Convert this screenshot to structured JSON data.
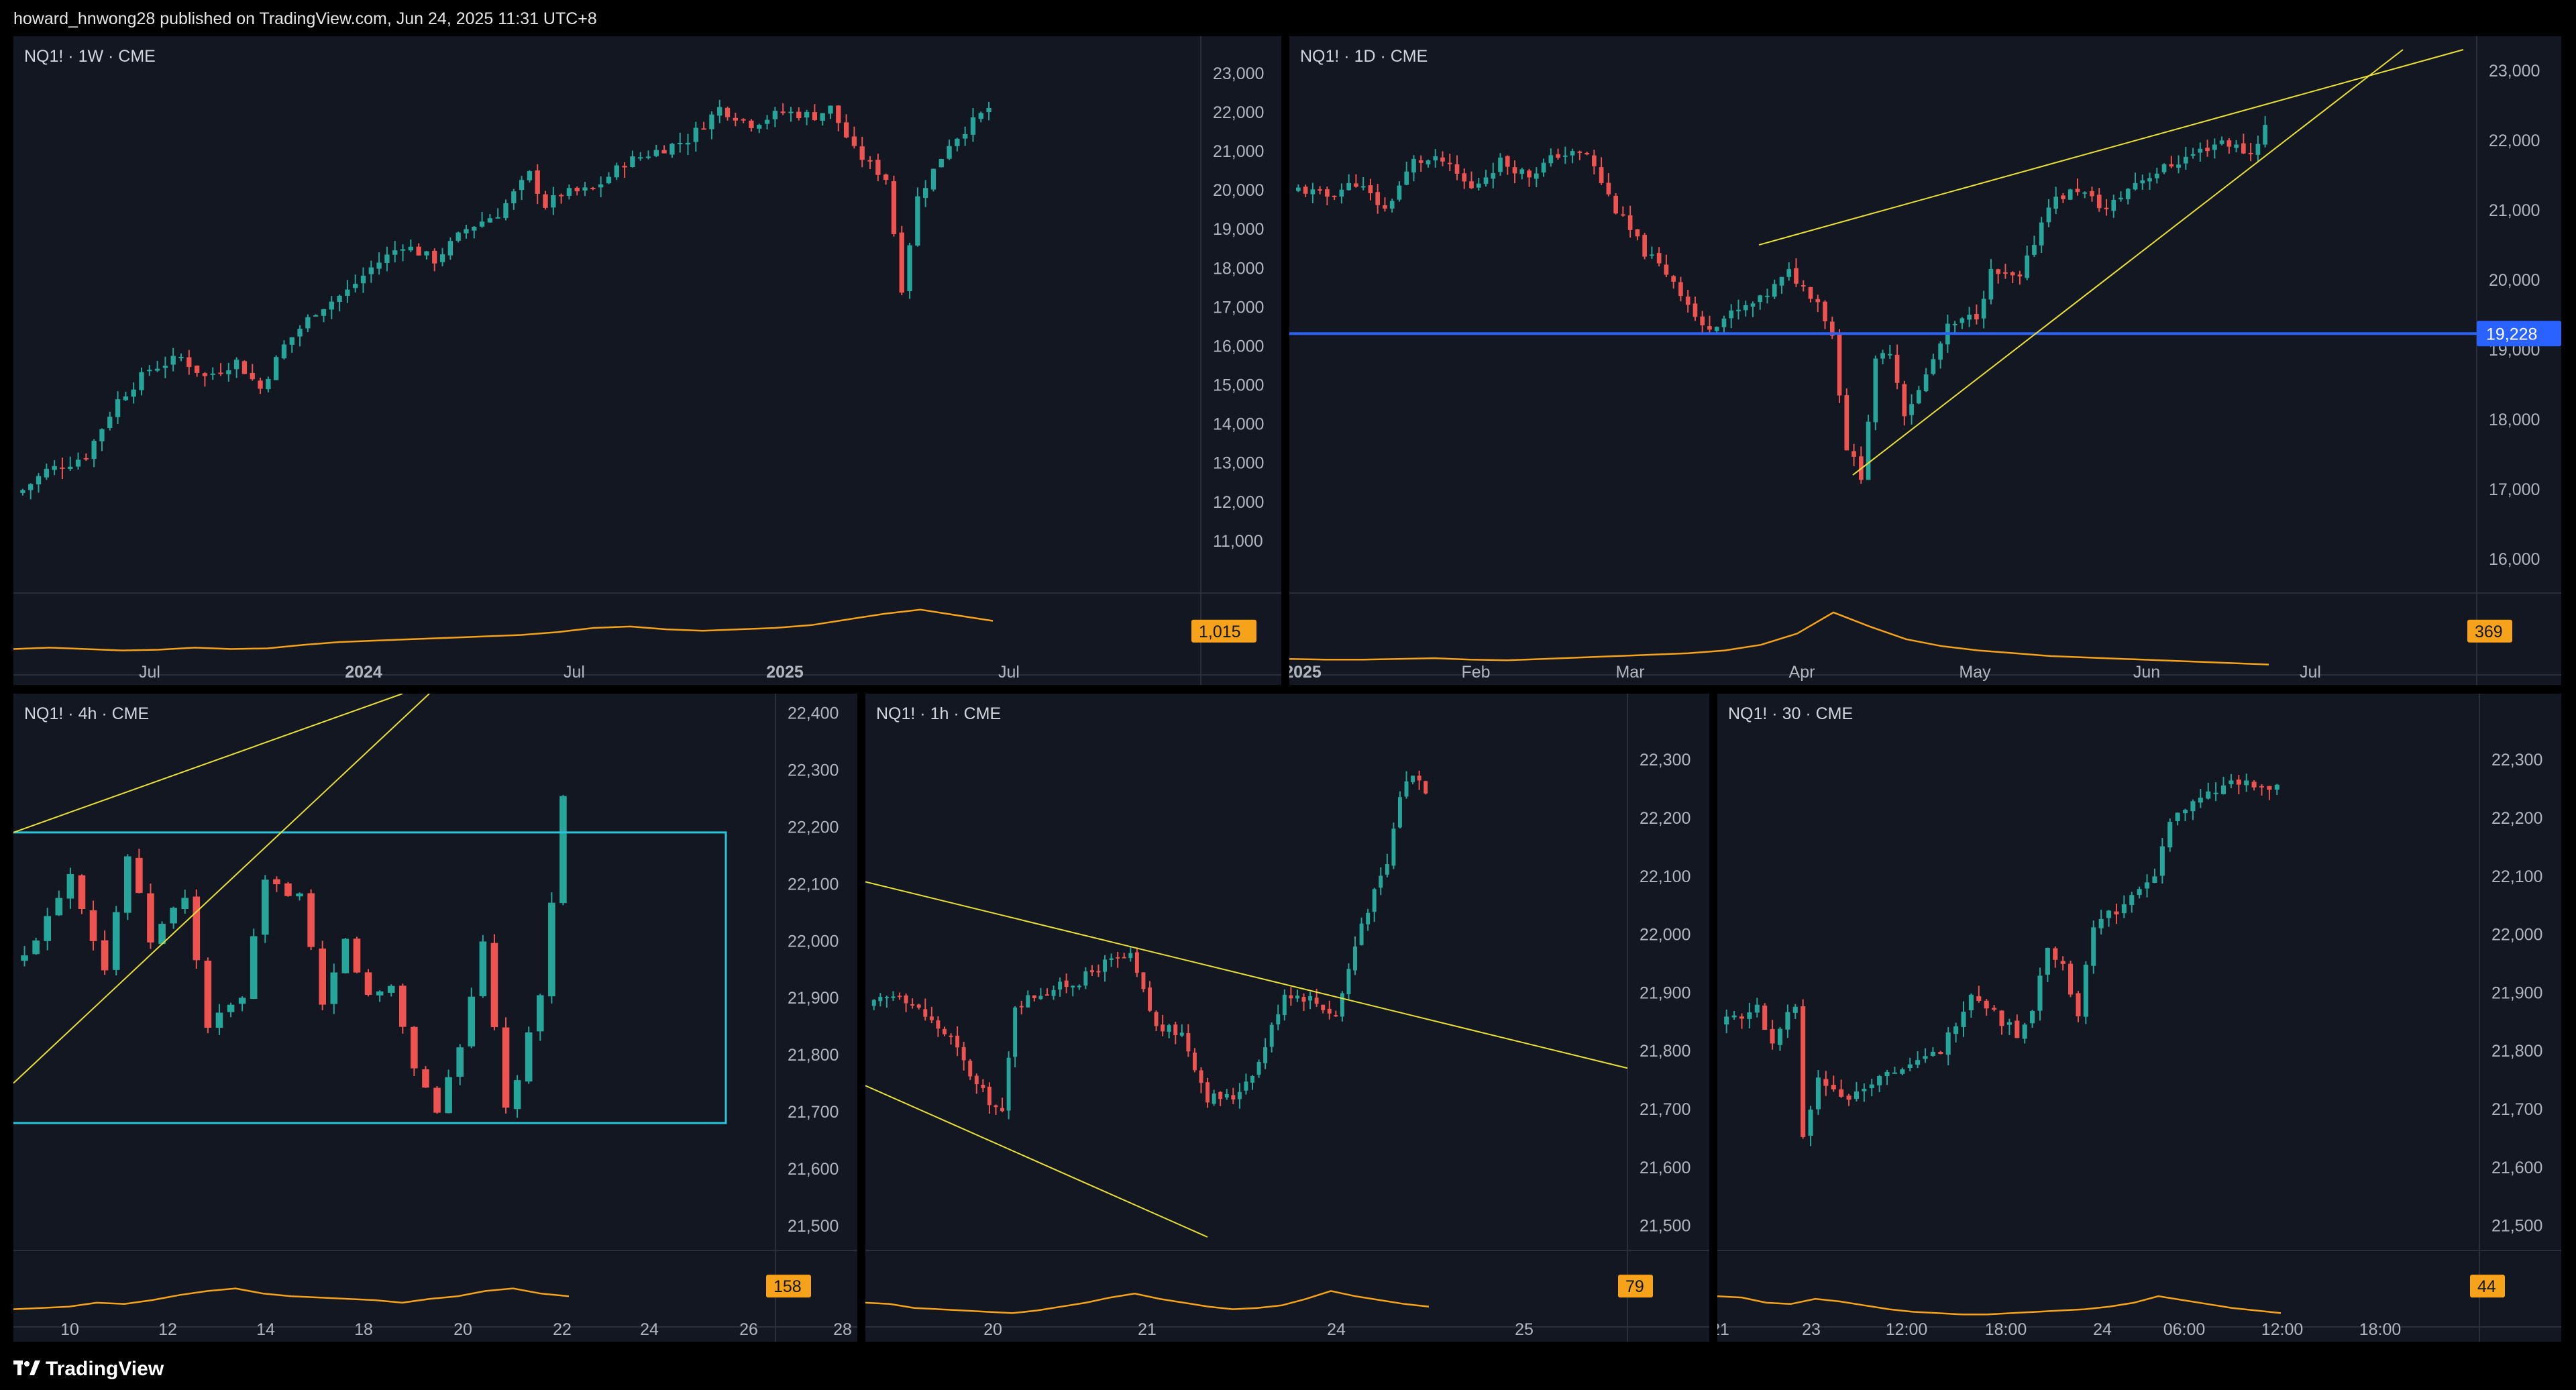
{
  "header": {
    "text": "howard_hnwong28 published on TradingView.com, Jun 24, 2025 11:31 UTC+8"
  },
  "footer": {
    "brand": "TradingView"
  },
  "colors": {
    "up": "#26a69a",
    "down": "#ef5350",
    "volume": "#f7a21b",
    "trend": "#e8e036",
    "level": "#2962ff",
    "box": "#26c6da",
    "bg": "#131722"
  },
  "chart_data": [
    {
      "type": "candlestick",
      "title": "NQ1! · 1W · CME",
      "ylim": [
        10000,
        23600
      ],
      "y_ticks": [
        11000,
        12000,
        13000,
        14000,
        15000,
        16000,
        17000,
        18000,
        19000,
        20000,
        21000,
        22000,
        23000
      ],
      "x_ticks": [
        "Jul",
        "2024",
        "Jul",
        "2025",
        "Jul"
      ],
      "keypoints": [
        [
          0,
          12300
        ],
        [
          3,
          12800
        ],
        [
          6,
          13000
        ],
        [
          8,
          13200
        ],
        [
          12,
          14600
        ],
        [
          16,
          15400
        ],
        [
          20,
          15700
        ],
        [
          23,
          15200
        ],
        [
          27,
          15600
        ],
        [
          30,
          14900
        ],
        [
          33,
          16000
        ],
        [
          37,
          16900
        ],
        [
          41,
          17400
        ],
        [
          44,
          18000
        ],
        [
          48,
          18600
        ],
        [
          52,
          18200
        ],
        [
          56,
          19000
        ],
        [
          60,
          19400
        ],
        [
          64,
          20400
        ],
        [
          66,
          19600
        ],
        [
          68,
          19900
        ],
        [
          72,
          20000
        ],
        [
          76,
          20700
        ],
        [
          80,
          21000
        ],
        [
          84,
          21300
        ],
        [
          88,
          22100
        ],
        [
          92,
          21700
        ],
        [
          96,
          22000
        ],
        [
          100,
          21900
        ],
        [
          102,
          22100
        ],
        [
          105,
          21000
        ],
        [
          109,
          20300
        ],
        [
          111,
          17500
        ],
        [
          113,
          19800
        ],
        [
          117,
          21200
        ],
        [
          122,
          22100
        ]
      ],
      "volume_label": "1,015",
      "volume_curve": [
        30,
        32,
        30,
        28,
        29,
        32,
        30,
        31,
        36,
        40,
        42,
        44,
        46,
        48,
        50,
        54,
        60,
        62,
        58,
        56,
        58,
        60,
        64,
        72,
        80,
        86,
        78,
        70
      ]
    },
    {
      "type": "candlestick",
      "title": "NQ1! · 1D · CME",
      "ylim": [
        15700,
        23300
      ],
      "y_ticks": [
        16000,
        17000,
        18000,
        19000,
        20000,
        21000,
        22000,
        23000
      ],
      "x_ticks": [
        "2025",
        "Feb",
        "Mar",
        "Apr",
        "May",
        "Jun",
        "Jul"
      ],
      "level": 19228,
      "level_label": "19,228",
      "keypoints": [
        [
          0,
          21300
        ],
        [
          4,
          21200
        ],
        [
          8,
          21400
        ],
        [
          12,
          21000
        ],
        [
          16,
          21700
        ],
        [
          20,
          21700
        ],
        [
          24,
          21300
        ],
        [
          28,
          21700
        ],
        [
          32,
          21500
        ],
        [
          36,
          21800
        ],
        [
          40,
          21800
        ],
        [
          44,
          21000
        ],
        [
          48,
          20400
        ],
        [
          52,
          20000
        ],
        [
          56,
          19300
        ],
        [
          60,
          19500
        ],
        [
          64,
          19700
        ],
        [
          68,
          20100
        ],
        [
          72,
          19700
        ],
        [
          74,
          19200
        ],
        [
          76,
          17600
        ],
        [
          78,
          17200
        ],
        [
          80,
          18800
        ],
        [
          82,
          19000
        ],
        [
          84,
          18100
        ],
        [
          86,
          18400
        ],
        [
          90,
          19300
        ],
        [
          94,
          19500
        ],
        [
          96,
          20100
        ],
        [
          100,
          20000
        ],
        [
          104,
          21100
        ],
        [
          108,
          21300
        ],
        [
          112,
          21000
        ],
        [
          116,
          21400
        ],
        [
          120,
          21600
        ],
        [
          124,
          21800
        ],
        [
          128,
          22000
        ],
        [
          132,
          21800
        ],
        [
          134,
          22200
        ]
      ],
      "volume_label": "369",
      "volume_curve": [
        16,
        15,
        15,
        16,
        17,
        15,
        14,
        16,
        18,
        20,
        22,
        24,
        28,
        36,
        52,
        82,
        62,
        44,
        34,
        28,
        24,
        20,
        18,
        16,
        14,
        12,
        10,
        8
      ]
    },
    {
      "type": "candlestick",
      "title": "NQ1! · 4h · CME",
      "ylim": [
        21480,
        22410
      ],
      "y_ticks": [
        21500,
        21600,
        21700,
        21800,
        21900,
        22000,
        22100,
        22200,
        22300,
        22400
      ],
      "x_ticks": [
        "10",
        "12",
        "14",
        "18",
        "20",
        "22",
        "24",
        "26",
        "28"
      ],
      "keypoints": [
        [
          0,
          21970
        ],
        [
          4,
          22120
        ],
        [
          7,
          21950
        ],
        [
          9,
          22150
        ],
        [
          11,
          22000
        ],
        [
          14,
          22080
        ],
        [
          16,
          21850
        ],
        [
          19,
          21900
        ],
        [
          21,
          22100
        ],
        [
          24,
          22080
        ],
        [
          26,
          21880
        ],
        [
          28,
          22000
        ],
        [
          30,
          21900
        ],
        [
          32,
          21920
        ],
        [
          34,
          21780
        ],
        [
          36,
          21700
        ],
        [
          38,
          21820
        ],
        [
          40,
          21990
        ],
        [
          42,
          21700
        ],
        [
          43,
          21760
        ],
        [
          45,
          21900
        ],
        [
          47,
          22250
        ]
      ],
      "box_top": 22190,
      "box_bottom": 21680,
      "volume_label": "158",
      "volume_curve": [
        20,
        22,
        24,
        30,
        28,
        34,
        42,
        48,
        52,
        44,
        40,
        38,
        36,
        34,
        30,
        36,
        40,
        48,
        52,
        44,
        40
      ]
    },
    {
      "type": "candlestick",
      "title": "NQ1! · 1h · CME",
      "ylim": [
        21480,
        22390
      ],
      "y_ticks": [
        21500,
        21600,
        21700,
        21800,
        21900,
        22000,
        22100,
        22200,
        22300
      ],
      "x_ticks": [
        "20",
        "21",
        "24",
        "25"
      ],
      "keypoints": [
        [
          0,
          21880
        ],
        [
          4,
          21900
        ],
        [
          8,
          21860
        ],
        [
          12,
          21820
        ],
        [
          16,
          21740
        ],
        [
          20,
          21690
        ],
        [
          22,
          21880
        ],
        [
          26,
          21900
        ],
        [
          32,
          21920
        ],
        [
          36,
          21950
        ],
        [
          40,
          21960
        ],
        [
          44,
          21840
        ],
        [
          48,
          21830
        ],
        [
          52,
          21720
        ],
        [
          56,
          21720
        ],
        [
          60,
          21780
        ],
        [
          64,
          21900
        ],
        [
          68,
          21890
        ],
        [
          72,
          21860
        ],
        [
          76,
          22020
        ],
        [
          80,
          22120
        ],
        [
          82,
          22240
        ],
        [
          84,
          22280
        ],
        [
          86,
          22250
        ]
      ],
      "volume_label": "79",
      "volume_curve": [
        30,
        28,
        22,
        20,
        18,
        16,
        14,
        18,
        24,
        30,
        38,
        44,
        36,
        30,
        24,
        20,
        22,
        26,
        36,
        48,
        40,
        34,
        28,
        24
      ]
    },
    {
      "type": "candlestick",
      "title": "NQ1! · 30 · CME",
      "ylim": [
        21480,
        22390
      ],
      "y_ticks": [
        21500,
        21600,
        21700,
        21800,
        21900,
        22000,
        22100,
        22200,
        22300
      ],
      "x_ticks": [
        "21",
        "23",
        "12:00",
        "18:00",
        "24",
        "06:00",
        "12:00",
        "18:00"
      ],
      "keypoints": [
        [
          0,
          21850
        ],
        [
          4,
          21870
        ],
        [
          6,
          21820
        ],
        [
          9,
          21880
        ],
        [
          10,
          21650
        ],
        [
          12,
          21750
        ],
        [
          16,
          21720
        ],
        [
          20,
          21760
        ],
        [
          24,
          21770
        ],
        [
          28,
          21800
        ],
        [
          32,
          21900
        ],
        [
          34,
          21880
        ],
        [
          36,
          21850
        ],
        [
          38,
          21830
        ],
        [
          40,
          21870
        ],
        [
          42,
          21980
        ],
        [
          44,
          21950
        ],
        [
          46,
          21860
        ],
        [
          48,
          22020
        ],
        [
          52,
          22050
        ],
        [
          56,
          22100
        ],
        [
          58,
          22200
        ],
        [
          62,
          22230
        ],
        [
          66,
          22260
        ],
        [
          70,
          22250
        ],
        [
          72,
          22250
        ]
      ],
      "volume_label": "44",
      "volume_curve": [
        40,
        38,
        30,
        28,
        36,
        32,
        26,
        20,
        16,
        14,
        12,
        12,
        14,
        16,
        18,
        20,
        24,
        30,
        40,
        34,
        28,
        22,
        18,
        14
      ]
    }
  ]
}
